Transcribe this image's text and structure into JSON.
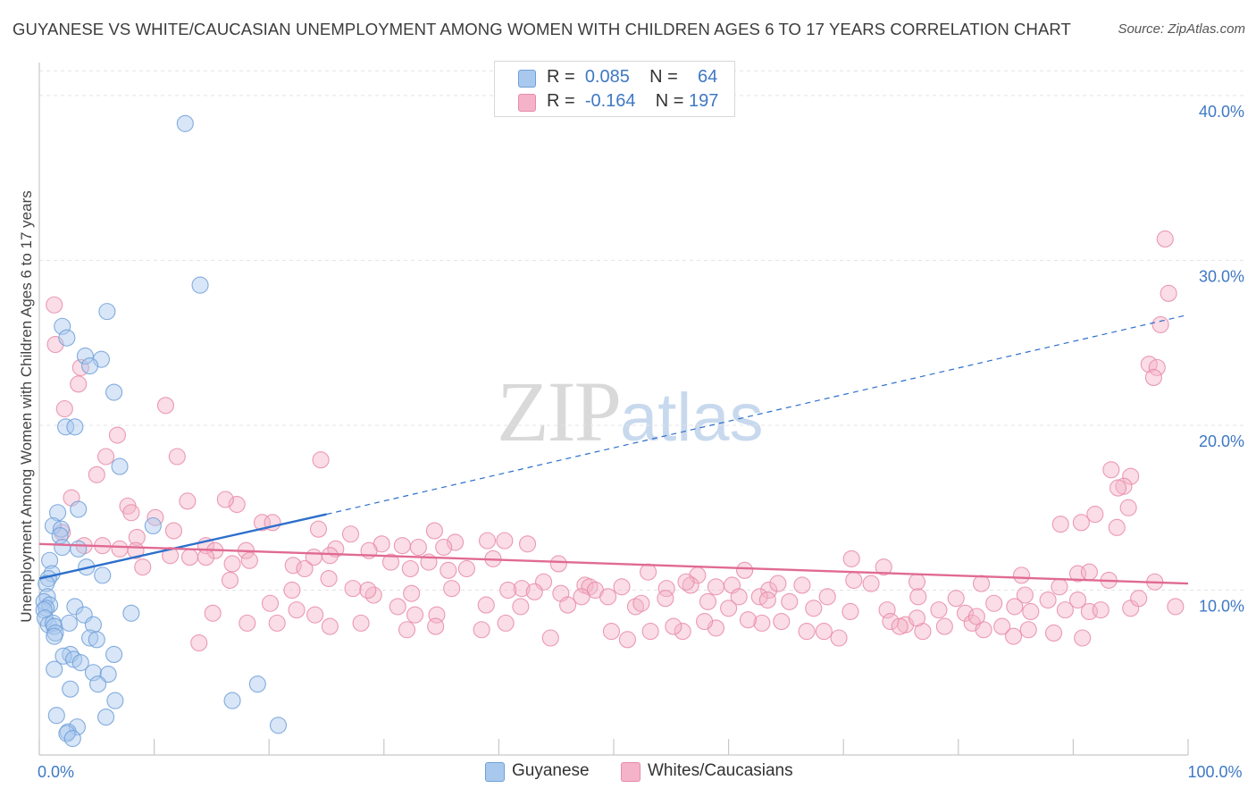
{
  "title": "GUYANESE VS WHITE/CAUCASIAN UNEMPLOYMENT AMONG WOMEN WITH CHILDREN AGES 6 TO 17 YEARS CORRELATION CHART",
  "source": "Source: ZipAtlas.com",
  "watermark": {
    "zip": "ZIP",
    "atlas": "atlas"
  },
  "stats": [
    {
      "r_label": "R =",
      "r_value": "0.085",
      "n_label": "N =",
      "n_value": "64",
      "color": "#a9c8ee"
    },
    {
      "r_label": "R =",
      "r_value": "-0.164",
      "n_label": "N =",
      "n_value": "197",
      "color": "#f4b3c8"
    }
  ],
  "legend": [
    {
      "label": "Guyanese",
      "color": "#a9c8ee"
    },
    {
      "label": "Whites/Caucasians",
      "color": "#f4b3c8"
    }
  ],
  "chart_data": {
    "type": "scatter",
    "title": "GUYANESE VS WHITE/CAUCASIAN UNEMPLOYMENT AMONG WOMEN WITH CHILDREN AGES 6 TO 17 YEARS CORRELATION CHART",
    "xlabel": "",
    "ylabel": "Unemployment Among Women with Children Ages 6 to 17 years",
    "xlim": [
      0,
      100
    ],
    "ylim": [
      0,
      42
    ],
    "x_ticks": [
      0,
      10,
      20,
      30,
      40,
      50,
      60,
      70,
      80,
      90,
      100
    ],
    "x_tick_labels": [
      {
        "value": 0,
        "label": "0.0%"
      },
      {
        "value": 100,
        "label": "100.0%"
      }
    ],
    "y_ticks": [
      {
        "value": 10,
        "label": "10.0%"
      },
      {
        "value": 20,
        "label": "20.0%"
      },
      {
        "value": 30,
        "label": "30.0%"
      },
      {
        "value": 40,
        "label": "40.0%"
      }
    ],
    "grid": "horizontal dashed",
    "legend_position": "bottom-center",
    "series": [
      {
        "name": "Guyanese",
        "color": "#a9c8ee",
        "stroke": "#6f9fd8",
        "trend": {
          "x": [
            0,
            25
          ],
          "y": [
            10.7,
            14.6
          ],
          "extend_to_x": 100,
          "extend_to_y": 26.7,
          "color": "#2d6fcc"
        },
        "points": [
          [
            12.7,
            38.3
          ],
          [
            14.0,
            28.5
          ],
          [
            5.9,
            26.9
          ],
          [
            2.0,
            26.0
          ],
          [
            2.4,
            25.3
          ],
          [
            4.0,
            24.2
          ],
          [
            5.4,
            24.0
          ],
          [
            4.4,
            23.6
          ],
          [
            6.5,
            22.0
          ],
          [
            2.3,
            19.9
          ],
          [
            3.1,
            19.9
          ],
          [
            7.0,
            17.5
          ],
          [
            1.6,
            14.7
          ],
          [
            3.4,
            14.9
          ],
          [
            1.2,
            13.9
          ],
          [
            1.9,
            13.7
          ],
          [
            1.8,
            13.3
          ],
          [
            9.9,
            13.9
          ],
          [
            3.4,
            12.5
          ],
          [
            2.0,
            12.6
          ],
          [
            0.9,
            11.8
          ],
          [
            4.1,
            11.4
          ],
          [
            1.1,
            11.0
          ],
          [
            5.5,
            10.9
          ],
          [
            0.8,
            10.7
          ],
          [
            0.6,
            10.4
          ],
          [
            0.7,
            9.6
          ],
          [
            0.4,
            9.3
          ],
          [
            0.9,
            9.1
          ],
          [
            0.6,
            8.9
          ],
          [
            3.1,
            9.0
          ],
          [
            0.4,
            8.8
          ],
          [
            0.5,
            8.3
          ],
          [
            0.8,
            7.9
          ],
          [
            8.0,
            8.6
          ],
          [
            3.9,
            8.5
          ],
          [
            1.2,
            8.0
          ],
          [
            1.3,
            7.8
          ],
          [
            4.7,
            7.9
          ],
          [
            2.6,
            8.0
          ],
          [
            1.4,
            7.4
          ],
          [
            1.3,
            7.2
          ],
          [
            4.4,
            7.1
          ],
          [
            5.0,
            7.0
          ],
          [
            2.7,
            6.1
          ],
          [
            6.5,
            6.1
          ],
          [
            2.1,
            6.0
          ],
          [
            3.0,
            5.8
          ],
          [
            3.6,
            5.6
          ],
          [
            1.3,
            5.2
          ],
          [
            4.7,
            5.0
          ],
          [
            6.0,
            4.9
          ],
          [
            2.7,
            4.0
          ],
          [
            5.1,
            4.3
          ],
          [
            19.0,
            4.3
          ],
          [
            6.6,
            3.3
          ],
          [
            16.8,
            3.3
          ],
          [
            1.5,
            2.4
          ],
          [
            5.8,
            2.3
          ],
          [
            20.8,
            1.8
          ],
          [
            3.3,
            1.7
          ],
          [
            2.5,
            1.4
          ],
          [
            2.4,
            1.3
          ],
          [
            2.9,
            1.0
          ]
        ]
      },
      {
        "name": "Whites/Caucasians",
        "color": "#f4b3c8",
        "stroke": "#e88aa8",
        "trend": {
          "x": [
            0,
            100
          ],
          "y": [
            12.8,
            10.4
          ],
          "color": "#e06a93"
        },
        "points": [
          [
            98.0,
            31.3
          ],
          [
            98.3,
            28.0
          ],
          [
            1.3,
            27.3
          ],
          [
            97.6,
            26.1
          ],
          [
            1.4,
            24.9
          ],
          [
            96.6,
            23.7
          ],
          [
            97.3,
            23.5
          ],
          [
            3.6,
            23.5
          ],
          [
            97.0,
            22.9
          ],
          [
            3.4,
            22.5
          ],
          [
            11.0,
            21.2
          ],
          [
            2.2,
            21.0
          ],
          [
            6.8,
            19.4
          ],
          [
            24.5,
            17.9
          ],
          [
            12.0,
            18.1
          ],
          [
            5.8,
            18.1
          ],
          [
            93.3,
            17.3
          ],
          [
            5.0,
            17.0
          ],
          [
            95.0,
            16.9
          ],
          [
            94.4,
            16.3
          ],
          [
            93.9,
            16.2
          ],
          [
            2.8,
            15.6
          ],
          [
            17.2,
            15.2
          ],
          [
            16.2,
            15.5
          ],
          [
            12.9,
            15.4
          ],
          [
            7.7,
            15.1
          ],
          [
            8.0,
            14.7
          ],
          [
            91.9,
            14.6
          ],
          [
            94.8,
            15.0
          ],
          [
            10.1,
            14.4
          ],
          [
            19.4,
            14.1
          ],
          [
            20.3,
            14.1
          ],
          [
            90.7,
            14.1
          ],
          [
            93.8,
            13.8
          ],
          [
            88.9,
            14.0
          ],
          [
            24.3,
            13.7
          ],
          [
            11.7,
            13.6
          ],
          [
            2.0,
            13.5
          ],
          [
            34.4,
            13.6
          ],
          [
            27.1,
            13.4
          ],
          [
            8.5,
            13.2
          ],
          [
            39.0,
            13.0
          ],
          [
            3.9,
            12.7
          ],
          [
            5.5,
            12.7
          ],
          [
            8.4,
            12.4
          ],
          [
            14.5,
            12.7
          ],
          [
            18.0,
            12.4
          ],
          [
            7.0,
            12.5
          ],
          [
            36.2,
            12.9
          ],
          [
            40.5,
            13.0
          ],
          [
            31.6,
            12.7
          ],
          [
            23.9,
            12.0
          ],
          [
            25.8,
            12.5
          ],
          [
            15.3,
            12.4
          ],
          [
            14.5,
            12.0
          ],
          [
            11.4,
            12.1
          ],
          [
            42.5,
            12.8
          ],
          [
            33.0,
            12.6
          ],
          [
            35.2,
            12.6
          ],
          [
            29.8,
            12.8
          ],
          [
            25.3,
            12.1
          ],
          [
            28.7,
            12.4
          ],
          [
            13.1,
            12.0
          ],
          [
            22.1,
            11.5
          ],
          [
            16.8,
            11.6
          ],
          [
            23.1,
            11.3
          ],
          [
            30.6,
            11.7
          ],
          [
            33.9,
            11.7
          ],
          [
            9.0,
            11.4
          ],
          [
            18.3,
            11.8
          ],
          [
            39.5,
            11.9
          ],
          [
            32.3,
            11.3
          ],
          [
            70.7,
            11.9
          ],
          [
            35.6,
            11.2
          ],
          [
            37.2,
            11.3
          ],
          [
            45.2,
            11.6
          ],
          [
            53.0,
            11.1
          ],
          [
            57.3,
            10.9
          ],
          [
            61.4,
            11.2
          ],
          [
            73.5,
            11.4
          ],
          [
            90.4,
            11.0
          ],
          [
            91.4,
            11.1
          ],
          [
            85.5,
            10.9
          ],
          [
            43.9,
            10.5
          ],
          [
            47.5,
            10.3
          ],
          [
            58.9,
            10.2
          ],
          [
            50.7,
            10.2
          ],
          [
            47.9,
            10.2
          ],
          [
            54.6,
            10.1
          ],
          [
            48.4,
            10.0
          ],
          [
            42.0,
            10.1
          ],
          [
            63.5,
            10.0
          ],
          [
            60.3,
            10.3
          ],
          [
            56.7,
            10.3
          ],
          [
            25.2,
            10.7
          ],
          [
            16.6,
            10.6
          ],
          [
            27.3,
            10.1
          ],
          [
            35.9,
            10.1
          ],
          [
            40.8,
            10.0
          ],
          [
            43.1,
            9.9
          ],
          [
            45.4,
            9.8
          ],
          [
            32.4,
            9.8
          ],
          [
            29.1,
            9.7
          ],
          [
            47.2,
            9.6
          ],
          [
            49.5,
            9.6
          ],
          [
            60.9,
            9.6
          ],
          [
            62.7,
            9.6
          ],
          [
            54.5,
            9.5
          ],
          [
            68.6,
            9.6
          ],
          [
            76.5,
            9.6
          ],
          [
            79.8,
            9.5
          ],
          [
            85.8,
            9.7
          ],
          [
            97.1,
            10.5
          ],
          [
            93.1,
            10.6
          ],
          [
            82.0,
            10.4
          ],
          [
            76.4,
            10.5
          ],
          [
            70.9,
            10.6
          ],
          [
            64.3,
            10.4
          ],
          [
            56.3,
            10.5
          ],
          [
            66.4,
            10.3
          ],
          [
            72.4,
            10.4
          ],
          [
            88.8,
            10.2
          ],
          [
            22.0,
            10.0
          ],
          [
            28.6,
            10.0
          ],
          [
            63.4,
            9.4
          ],
          [
            60.0,
            8.9
          ],
          [
            58.2,
            9.3
          ],
          [
            46.0,
            9.1
          ],
          [
            51.9,
            9.0
          ],
          [
            52.4,
            9.2
          ],
          [
            41.9,
            9.0
          ],
          [
            20.1,
            9.2
          ],
          [
            22.4,
            8.8
          ],
          [
            31.2,
            9.0
          ],
          [
            38.9,
            9.1
          ],
          [
            24.0,
            8.5
          ],
          [
            15.1,
            8.6
          ],
          [
            34.6,
            8.5
          ],
          [
            32.7,
            8.5
          ],
          [
            65.3,
            9.3
          ],
          [
            67.4,
            8.9
          ],
          [
            70.6,
            8.7
          ],
          [
            73.8,
            8.8
          ],
          [
            78.3,
            8.8
          ],
          [
            80.6,
            8.6
          ],
          [
            83.1,
            9.2
          ],
          [
            84.9,
            9.0
          ],
          [
            86.3,
            8.7
          ],
          [
            89.3,
            8.8
          ],
          [
            90.4,
            9.4
          ],
          [
            87.8,
            9.4
          ],
          [
            91.4,
            8.7
          ],
          [
            92.4,
            8.8
          ],
          [
            95.0,
            8.9
          ],
          [
            74.1,
            8.1
          ],
          [
            75.4,
            7.9
          ],
          [
            74.9,
            7.8
          ],
          [
            76.9,
            7.5
          ],
          [
            78.8,
            7.8
          ],
          [
            81.2,
            8.0
          ],
          [
            82.2,
            7.6
          ],
          [
            83.8,
            7.8
          ],
          [
            84.8,
            7.2
          ],
          [
            86.1,
            7.6
          ],
          [
            88.3,
            7.4
          ],
          [
            90.8,
            7.1
          ],
          [
            69.6,
            7.1
          ],
          [
            68.3,
            7.5
          ],
          [
            66.8,
            7.5
          ],
          [
            64.6,
            8.1
          ],
          [
            62.9,
            8.0
          ],
          [
            61.7,
            8.2
          ],
          [
            58.9,
            7.7
          ],
          [
            57.9,
            8.1
          ],
          [
            56.0,
            7.5
          ],
          [
            55.2,
            7.8
          ],
          [
            53.2,
            7.5
          ],
          [
            51.2,
            7.0
          ],
          [
            49.8,
            7.5
          ],
          [
            44.5,
            7.1
          ],
          [
            40.6,
            8.0
          ],
          [
            38.5,
            7.6
          ],
          [
            34.5,
            7.8
          ],
          [
            32.0,
            7.6
          ],
          [
            28.0,
            8.0
          ],
          [
            25.3,
            7.8
          ],
          [
            20.7,
            8.0
          ],
          [
            18.1,
            8.0
          ],
          [
            13.9,
            6.8
          ],
          [
            76.4,
            8.3
          ],
          [
            81.6,
            8.4
          ],
          [
            95.7,
            9.5
          ],
          [
            98.9,
            9.0
          ]
        ]
      }
    ]
  }
}
